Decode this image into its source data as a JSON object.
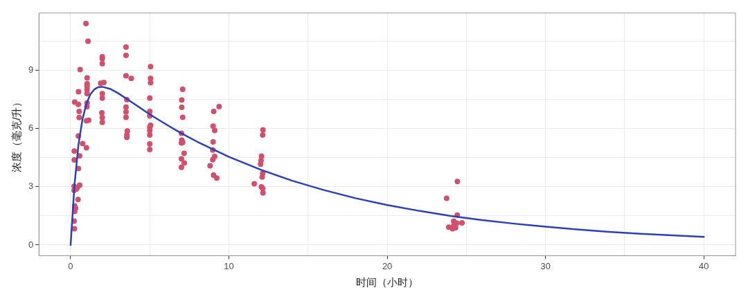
{
  "chart_data": {
    "type": "scatter",
    "xlabel": "时间（小时）",
    "ylabel": "浓度（毫克/升）",
    "xlim": [
      -2,
      42
    ],
    "ylim": [
      -0.55,
      11.95
    ],
    "xticks": [
      0,
      {
        "value": 5,
        "label": null
      },
      10,
      {
        "value": 15,
        "label": null
      },
      20,
      {
        "value": 25,
        "label": null
      },
      30,
      {
        "value": 35,
        "label": null
      },
      40
    ],
    "yticks": [
      0,
      {
        "value": 1.5,
        "label": null
      },
      3,
      {
        "value": 4.5,
        "label": null
      },
      6,
      {
        "value": 7.5,
        "label": null
      },
      9,
      {
        "value": 10.5,
        "label": null
      }
    ],
    "grid": true,
    "series": [
      {
        "color": "#d1506e",
        "marker": "circle",
        "x": [
          0.97,
          1.1,
          2.0,
          2.0,
          2.0,
          3.5,
          3.5,
          0.6,
          3.5,
          3.83,
          5.05,
          5.05,
          5.05,
          1.04,
          1.04,
          1.04,
          1.04,
          1.04,
          0.5,
          1.9,
          2.1,
          2.0,
          2.0,
          0.26,
          0.49,
          1.04,
          1.03,
          3.55,
          3.5,
          3.5,
          3.5,
          5.0,
          5.0,
          5.0,
          5.05,
          5.0,
          5.0,
          5.0,
          5.0,
          5.0,
          0.54,
          0.54,
          1.0,
          1.14,
          1.97,
          2.0,
          2.0,
          3.58,
          3.55,
          3.55,
          0.49,
          0.76,
          1.0,
          0.23,
          0.23,
          0.57,
          0.49,
          0.22,
          0.22,
          0.43,
          0.57,
          0.36,
          0.47,
          0.26,
          0.26,
          0.26,
          0.31,
          0.22,
          0.24,
          7.08,
          7.02,
          7.02,
          7.08,
          7.0,
          7.02,
          7.0,
          7.08,
          7.17,
          7.0,
          7.18,
          7.0,
          9.38,
          9.04,
          9.0,
          9.1,
          9.0,
          8.98,
          9.1,
          8.98,
          8.81,
          9.03,
          9.23,
          12.15,
          12.13,
          12.06,
          12.03,
          12.0,
          12.13,
          12.1,
          11.6,
          12.05,
          12.13,
          12.15,
          24.43,
          23.75,
          24.42,
          24.2,
          24.39,
          24.72,
          23.89,
          24.13,
          24.32,
          24.2
        ],
        "values": [
          11.41,
          10.5,
          9.7,
          9.6,
          9.34,
          10.2,
          9.77,
          9.04,
          8.72,
          8.58,
          9.19,
          8.58,
          8.36,
          8.61,
          8.31,
          8.17,
          8.0,
          7.8,
          7.9,
          8.33,
          8.37,
          7.8,
          7.57,
          7.36,
          7.25,
          7.32,
          7.12,
          7.49,
          7.1,
          6.85,
          6.58,
          7.57,
          6.88,
          6.65,
          6.17,
          6.06,
          5.9,
          5.67,
          5.2,
          4.92,
          6.88,
          6.57,
          6.4,
          6.43,
          6.81,
          6.57,
          6.32,
          5.87,
          5.67,
          5.54,
          5.61,
          5.22,
          5.01,
          4.84,
          4.38,
          4.59,
          3.94,
          3.02,
          2.82,
          2.96,
          3.08,
          2.88,
          2.34,
          2.01,
          1.85,
          1.73,
          1.9,
          1.23,
          0.84,
          8.02,
          7.47,
          7.09,
          6.58,
          5.76,
          5.4,
          5.26,
          5.29,
          4.72,
          4.44,
          4.22,
          4.0,
          7.13,
          6.88,
          6.12,
          5.9,
          5.31,
          4.89,
          4.56,
          4.39,
          4.08,
          3.6,
          3.45,
          5.93,
          5.67,
          4.57,
          4.36,
          4.16,
          3.69,
          3.5,
          3.15,
          2.99,
          2.91,
          2.68,
          3.27,
          2.41,
          1.54,
          1.23,
          1.12,
          1.14,
          0.92,
          0.84,
          0.89,
          1.0
        ]
      },
      {
        "type": "line",
        "color": "#2a3fbf",
        "marker": "none",
        "line_style": "solid",
        "x": [
          0,
          0.25,
          0.5,
          0.75,
          1,
          1.25,
          1.5,
          1.75,
          2,
          2.5,
          3,
          4,
          5,
          6,
          7,
          8,
          10,
          12,
          14,
          16,
          18,
          20,
          22,
          24,
          26,
          28,
          30,
          32,
          34,
          36,
          38,
          40
        ],
        "values": [
          0,
          3.15,
          5.19,
          6.48,
          7.28,
          7.76,
          8.02,
          8.13,
          8.15,
          8.04,
          7.82,
          7.28,
          6.73,
          6.23,
          5.75,
          5.32,
          4.54,
          3.88,
          3.31,
          2.83,
          2.41,
          2.06,
          1.76,
          1.5,
          1.28,
          1.1,
          0.94,
          0.8,
          0.68,
          0.58,
          0.5,
          0.42
        ]
      }
    ]
  }
}
